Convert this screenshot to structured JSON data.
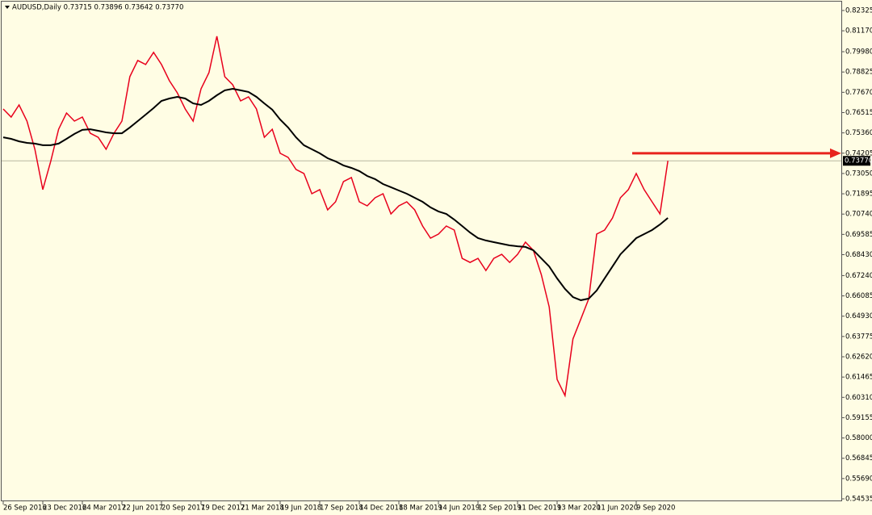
{
  "chart_data": {
    "type": "line",
    "title": "AUDUSD,Daily  0.73715 0.73896 0.73642 0.73770",
    "categories": [
      "26 Sep 2016",
      null,
      null,
      null,
      null,
      "23 Dec 2016",
      null,
      null,
      null,
      null,
      "24 Mar 2017",
      null,
      null,
      null,
      null,
      "22 Jun 2017",
      null,
      null,
      null,
      null,
      "20 Sep 2017",
      null,
      null,
      null,
      null,
      "19 Dec 2017",
      null,
      null,
      null,
      null,
      "21 Mar 2018",
      null,
      null,
      null,
      null,
      "19 Jun 2018",
      null,
      null,
      null,
      null,
      "17 Sep 2018",
      null,
      null,
      null,
      null,
      "14 Dec 2018",
      null,
      null,
      null,
      null,
      "18 Mar 2019",
      null,
      null,
      null,
      null,
      "14 Jun 2019",
      null,
      null,
      null,
      null,
      "12 Sep 2019",
      null,
      null,
      null,
      null,
      "11 Dec 2019",
      null,
      null,
      null,
      null,
      "13 Mar 2020",
      null,
      null,
      null,
      null,
      "11 Jun 2020",
      null,
      null,
      null,
      null,
      "9 Sep 2020",
      null,
      null,
      null,
      null
    ],
    "series": [
      {
        "color": "#e8001c",
        "values": [
          0.7672,
          0.7626,
          0.7695,
          0.7603,
          0.7443,
          0.7213,
          0.7374,
          0.7557,
          0.7649,
          0.7603,
          0.7626,
          0.7534,
          0.7511,
          0.7443,
          0.7534,
          0.7603,
          0.7856,
          0.7948,
          0.7925,
          0.7994,
          0.7925,
          0.7833,
          0.7764,
          0.7672,
          0.7603,
          0.7787,
          0.7879,
          0.8086,
          0.7856,
          0.781,
          0.7718,
          0.7741,
          0.7672,
          0.7511,
          0.7557,
          0.742,
          0.7397,
          0.7328,
          0.7305,
          0.719,
          0.7213,
          0.7098,
          0.7144,
          0.7259,
          0.7282,
          0.7144,
          0.7121,
          0.7167,
          0.719,
          0.7075,
          0.7121,
          0.7144,
          0.7098,
          0.7006,
          0.6937,
          0.696,
          0.7006,
          0.6983,
          0.6822,
          0.6799,
          0.6822,
          0.6753,
          0.6822,
          0.6845,
          0.6799,
          0.6845,
          0.6914,
          0.6868,
          0.673,
          0.6546,
          0.6133,
          0.6041,
          0.6363,
          0.6477,
          0.6592,
          0.696,
          0.6983,
          0.7052,
          0.7167,
          0.7213,
          0.7305,
          0.7213,
          0.7144,
          0.7075,
          0.7377
        ]
      },
      {
        "color": "#000000",
        "values": [
          0.7511,
          0.7502,
          0.7488,
          0.7479,
          0.7475,
          0.7466,
          0.7466,
          0.7475,
          0.7502,
          0.753,
          0.7553,
          0.7557,
          0.7548,
          0.7539,
          0.7534,
          0.7534,
          0.7567,
          0.7603,
          0.764,
          0.7677,
          0.7718,
          0.7732,
          0.7741,
          0.7732,
          0.7704,
          0.7695,
          0.7718,
          0.775,
          0.7778,
          0.7787,
          0.7778,
          0.7769,
          0.7741,
          0.7704,
          0.7668,
          0.7612,
          0.7567,
          0.7511,
          0.7466,
          0.7443,
          0.742,
          0.7392,
          0.7374,
          0.7351,
          0.7337,
          0.7319,
          0.7291,
          0.7273,
          0.7245,
          0.7227,
          0.7208,
          0.719,
          0.7167,
          0.7144,
          0.7112,
          0.7089,
          0.7075,
          0.7043,
          0.7006,
          0.6969,
          0.6937,
          0.6924,
          0.6914,
          0.6905,
          0.6896,
          0.6891,
          0.6887,
          0.6868,
          0.6822,
          0.6776,
          0.6708,
          0.6648,
          0.6602,
          0.6584,
          0.6593,
          0.6639,
          0.6708,
          0.6776,
          0.6845,
          0.6891,
          0.6937,
          0.696,
          0.6983,
          0.7015,
          0.7052
        ]
      }
    ],
    "last_price": {
      "value": 0.7377,
      "label": "0.73770"
    },
    "arrow_level": 0.742,
    "ylim": [
      0.54535,
      0.82325
    ],
    "yticks": [
      {
        "value": 0.82325,
        "label": "0.82325"
      },
      {
        "value": 0.8117,
        "label": "0.81170"
      },
      {
        "value": 0.7998,
        "label": "0.79980"
      },
      {
        "value": 0.78825,
        "label": "0.78825"
      },
      {
        "value": 0.7767,
        "label": "0.77670"
      },
      {
        "value": 0.76515,
        "label": "0.76515"
      },
      {
        "value": 0.7536,
        "label": "0.75360"
      },
      {
        "value": 0.74205,
        "label": "0.74205"
      },
      {
        "value": 0.7305,
        "label": "0.73050"
      },
      {
        "value": 0.71895,
        "label": "0.71895"
      },
      {
        "value": 0.7074,
        "label": "0.70740"
      },
      {
        "value": 0.69585,
        "label": "0.69585"
      },
      {
        "value": 0.6843,
        "label": "0.68430"
      },
      {
        "value": 0.6724,
        "label": "0.67240"
      },
      {
        "value": 0.66085,
        "label": "0.66085"
      },
      {
        "value": 0.6493,
        "label": "0.64930"
      },
      {
        "value": 0.63775,
        "label": "0.63775"
      },
      {
        "value": 0.6262,
        "label": "0.62620"
      },
      {
        "value": 0.61465,
        "label": "0.61465"
      },
      {
        "value": 0.6031,
        "label": "0.60310"
      },
      {
        "value": 0.59155,
        "label": "0.59155"
      },
      {
        "value": 0.58,
        "label": "0.58000"
      },
      {
        "value": 0.56845,
        "label": "0.56845"
      },
      {
        "value": 0.5569,
        "label": "0.55690"
      },
      {
        "value": 0.54535,
        "label": "0.54535"
      }
    ],
    "grid": false
  }
}
